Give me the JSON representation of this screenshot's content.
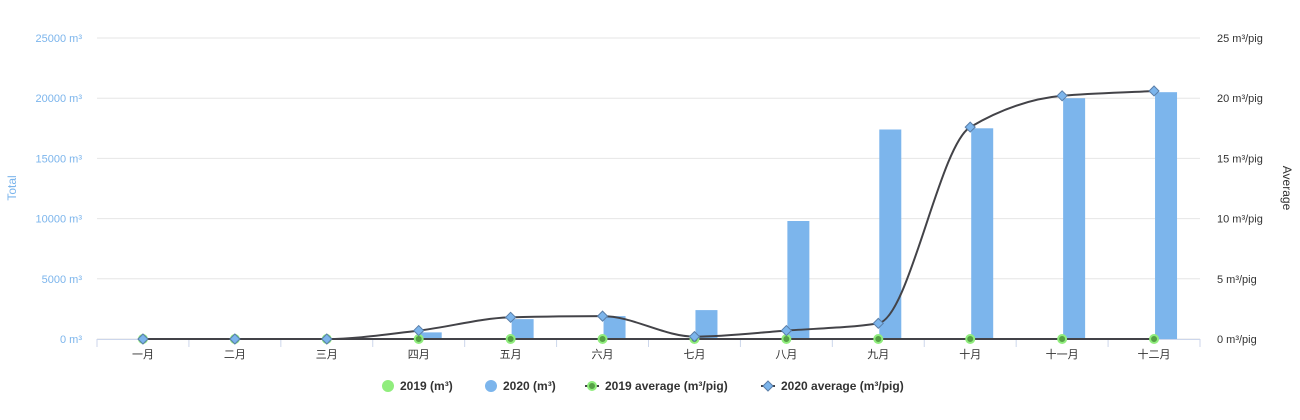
{
  "chart_data": {
    "type": "bar",
    "categories": [
      "一月",
      "二月",
      "三月",
      "四月",
      "五月",
      "六月",
      "七月",
      "八月",
      "九月",
      "十月",
      "十一月",
      "十二月"
    ],
    "left_axis": {
      "title": "Total",
      "ticks": [
        "0 m³",
        "5000 m³",
        "10000 m³",
        "15000 m³",
        "20000 m³",
        "25000 m³"
      ],
      "range": [
        0,
        25000
      ]
    },
    "right_axis": {
      "title": "Average",
      "ticks": [
        "0 m³/pig",
        "5 m³/pig",
        "10 m³/pig",
        "15 m³/pig",
        "20 m³/pig",
        "25 m³/pig"
      ],
      "range": [
        0,
        25
      ]
    },
    "grid": true,
    "legend_position": "bottom-center",
    "series": [
      {
        "name": "2019 (m³)",
        "kind": "bar",
        "axis": "left",
        "color": "#90ed7d",
        "values": [
          0,
          0,
          0,
          0,
          0,
          0,
          0,
          0,
          0,
          0,
          0,
          0
        ]
      },
      {
        "name": "2020 (m³)",
        "kind": "bar",
        "axis": "left",
        "color": "#7cb5ec",
        "values": [
          0,
          0,
          0,
          550,
          1650,
          1900,
          2400,
          9800,
          17400,
          17500,
          20000,
          20500
        ]
      },
      {
        "name": "2019 average (m³/pig)",
        "kind": "line",
        "axis": "right",
        "color": "#90ed7d",
        "lineColor": "#434348",
        "marker": "circle",
        "values": [
          0,
          0,
          0,
          0,
          0,
          0,
          0,
          0,
          0,
          0,
          0,
          0
        ]
      },
      {
        "name": "2020 average (m³/pig)",
        "kind": "line",
        "axis": "right",
        "color": "#7cb5ec",
        "lineColor": "#434348",
        "marker": "diamond",
        "values": [
          0,
          0,
          0,
          0.7,
          1.8,
          1.9,
          0.2,
          0.7,
          1.3,
          17.6,
          20.2,
          20.6
        ]
      }
    ]
  }
}
